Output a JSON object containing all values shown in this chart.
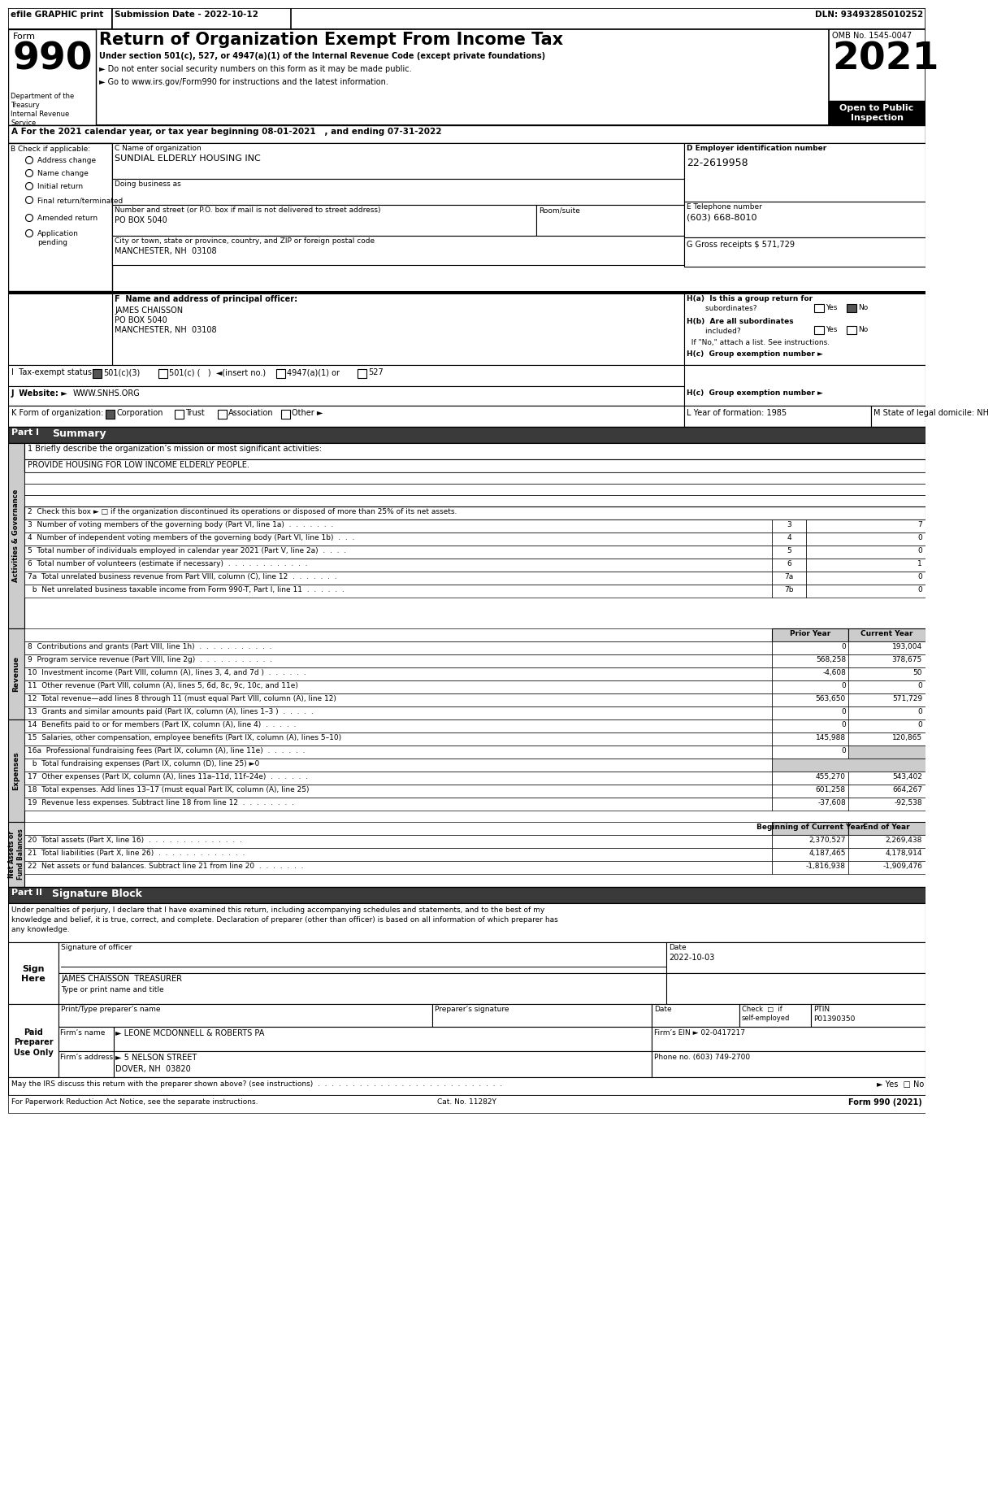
{
  "header_bar_text": "efile GRAPHIC print",
  "submission_date": "Submission Date - 2022-10-12",
  "dln": "DLN: 93493285010252",
  "form_number": "990",
  "title": "Return of Organization Exempt From Income Tax",
  "subtitle1": "Under section 501(c), 527, or 4947(a)(1) of the Internal Revenue Code (except private foundations)",
  "subtitle2": "► Do not enter social security numbers on this form as it may be made public.",
  "subtitle3": "► Go to www.irs.gov/Form990 for instructions and the latest information.",
  "omb": "OMB No. 1545-0047",
  "year": "2021",
  "open_to_public": "Open to Public\nInspection",
  "dept": "Department of the\nTreasury\nInternal Revenue\nService",
  "section_a": "A For the 2021 calendar year, or tax year beginning 08-01-2021   , and ending 07-31-2022",
  "b_label": "B Check if applicable:",
  "c_label": "C Name of organization",
  "org_name": "SUNDIAL ELDERLY HOUSING INC",
  "dba_label": "Doing business as",
  "address_label": "Number and street (or P.O. box if mail is not delivered to street address)",
  "address_value": "PO BOX 5040",
  "room_label": "Room/suite",
  "city_label": "City or town, state or province, country, and ZIP or foreign postal code",
  "city_value": "MANCHESTER, NH  03108",
  "d_label": "D Employer identification number",
  "ein": "22-2619958",
  "e_label": "E Telephone number",
  "phone": "(603) 668-8010",
  "g_label": "G Gross receipts $ 571,729",
  "f_label": "F  Name and address of principal officer:",
  "officer_name": "JAMES CHAISSON",
  "officer_address1": "PO BOX 5040",
  "officer_city": "MANCHESTER, NH  03108",
  "i_label": "I  Tax-exempt status:",
  "website": "WWW.SNHS.ORG",
  "l_label": "L Year of formation: 1985",
  "m_label": "M State of legal domicile: NH",
  "part1_label": "Part I",
  "part1_title": "Summary",
  "line1_label": "1 Briefly describe the organization’s mission or most significant activities:",
  "line1_value": "PROVIDE HOUSING FOR LOW INCOME ELDERLY PEOPLE.",
  "line2_label": "2  Check this box ► □ if the organization discontinued its operations or disposed of more than 25% of its net assets.",
  "line3_label": "3  Number of voting members of the governing body (Part VI, line 1a)  .  .  .  .  .  .  .",
  "line3_num": "3",
  "line3_val": "7",
  "line4_label": "4  Number of independent voting members of the governing body (Part VI, line 1b)  .  .  .",
  "line4_num": "4",
  "line4_val": "0",
  "line5_label": "5  Total number of individuals employed in calendar year 2021 (Part V, line 2a)  .  .  .  .",
  "line5_num": "5",
  "line5_val": "0",
  "line6_label": "6  Total number of volunteers (estimate if necessary)  .  .  .  .  .  .  .  .  .  .  .  .",
  "line6_num": "6",
  "line6_val": "1",
  "line7a_label": "7a  Total unrelated business revenue from Part VIII, column (C), line 12  .  .  .  .  .  .  .",
  "line7a_num": "7a",
  "line7a_val": "0",
  "line7b_label": "  b  Net unrelated business taxable income from Form 990-T, Part I, line 11  .  .  .  .  .  .",
  "line7b_num": "7b",
  "line7b_val": "0",
  "col_prior": "Prior Year",
  "col_current": "Current Year",
  "line8_label": "8  Contributions and grants (Part VIII, line 1h)  .  .  .  .  .  .  .  .  .  .  .",
  "line8_prior": "0",
  "line8_current": "193,004",
  "line9_label": "9  Program service revenue (Part VIII, line 2g)  .  .  .  .  .  .  .  .  .  .  .",
  "line9_prior": "568,258",
  "line9_current": "378,675",
  "line10_label": "10  Investment income (Part VIII, column (A), lines 3, 4, and 7d )  .  .  .  .  .  .",
  "line10_prior": "-4,608",
  "line10_current": "50",
  "line11_label": "11  Other revenue (Part VIII, column (A), lines 5, 6d, 8c, 9c, 10c, and 11e)",
  "line11_prior": "0",
  "line11_current": "0",
  "line12_label": "12  Total revenue—add lines 8 through 11 (must equal Part VIII, column (A), line 12)",
  "line12_prior": "563,650",
  "line12_current": "571,729",
  "line13_label": "13  Grants and similar amounts paid (Part IX, column (A), lines 1–3 )  .  .  .  .  .",
  "line13_prior": "0",
  "line13_current": "0",
  "line14_label": "14  Benefits paid to or for members (Part IX, column (A), line 4)  .  .  .  .  .",
  "line14_prior": "0",
  "line14_current": "0",
  "line15_label": "15  Salaries, other compensation, employee benefits (Part IX, column (A), lines 5–10)",
  "line15_prior": "145,988",
  "line15_current": "120,865",
  "line16a_label": "16a  Professional fundraising fees (Part IX, column (A), line 11e)  .  .  .  .  .  .",
  "line16a_prior": "0",
  "line16b_label": "  b  Total fundraising expenses (Part IX, column (D), line 25) ►0",
  "line17_label": "17  Other expenses (Part IX, column (A), lines 11a–11d, 11f–24e)  .  .  .  .  .  .",
  "line17_prior": "455,270",
  "line17_current": "543,402",
  "line18_label": "18  Total expenses. Add lines 13–17 (must equal Part IX, column (A), line 25)",
  "line18_prior": "601,258",
  "line18_current": "664,267",
  "line19_label": "19  Revenue less expenses. Subtract line 18 from line 12  .  .  .  .  .  .  .  .",
  "line19_prior": "-37,608",
  "line19_current": "-92,538",
  "col_beg": "Beginning of Current Year",
  "col_end": "End of Year",
  "line20_label": "20  Total assets (Part X, line 16)  .  .  .  .  .  .  .  .  .  .  .  .  .  .",
  "line20_beg": "2,370,527",
  "line20_end": "2,269,438",
  "line21_label": "21  Total liabilities (Part X, line 26)  .  .  .  .  .  .  .  .  .  .  .  .  .",
  "line21_beg": "4,187,465",
  "line21_end": "4,178,914",
  "line22_label": "22  Net assets or fund balances. Subtract line 21 from line 20  .  .  .  .  .  .  .",
  "line22_beg": "-1,816,938",
  "line22_end": "-1,909,476",
  "part2_label": "Part II",
  "part2_title": "Signature Block",
  "sig_text1": "Under penalties of perjury, I declare that I have examined this return, including accompanying schedules and statements, and to the best of my",
  "sig_text2": "knowledge and belief, it is true, correct, and complete. Declaration of preparer (other than officer) is based on all information of which preparer has",
  "sig_text3": "any knowledge.",
  "sig_officer_label": "Signature of officer",
  "sig_date": "2022-10-03",
  "sig_officer_name": "JAMES CHAISSON  TREASURER",
  "sig_officer_type": "Type or print name and title",
  "preparer_name_label": "Print/Type preparer’s name",
  "preparer_sig_label": "Preparer’s signature",
  "preparer_date_label": "Date",
  "preparer_check_label": "Check  □  if\nself-employed",
  "preparer_ptin_label": "PTIN",
  "preparer_ptin": "P01390350",
  "paid_preparer": "Paid\nPreparer\nUse Only",
  "firm_name": "► LEONE MCDONNELL & ROBERTS PA",
  "firm_ein": "02-0417217",
  "firm_address": "► 5 NELSON STREET",
  "firm_city": "DOVER, NH  03820",
  "firm_phone": "(603) 749-2700",
  "irs_discuss": "May the IRS discuss this return with the preparer shown above? (see instructions)  .  .  .  .  .  .  .  .  .  .  .  .  .  .  .  .  .  .  .  .  .  .  .  .  .  .  .",
  "cat_no": "Cat. No. 11282Y",
  "form_bottom": "Form 990 (2021)"
}
